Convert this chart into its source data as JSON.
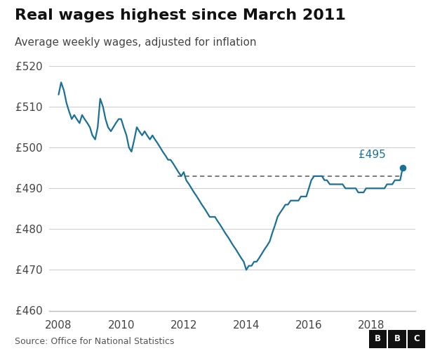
{
  "title": "Real wages highest since March 2011",
  "subtitle": "Average weekly wages, adjusted for inflation",
  "source": "Source: Office for National Statistics",
  "line_color": "#1a7099",
  "dashed_line_y": 493,
  "annotation_value": "£495",
  "annotation_color": "#1a7099",
  "ylim": [
    460,
    522
  ],
  "yticks": [
    460,
    470,
    480,
    490,
    500,
    510,
    520
  ],
  "ylabel_prefix": "£",
  "xticks": [
    2008,
    2010,
    2012,
    2014,
    2016,
    2018
  ],
  "xlim": [
    2007.7,
    2019.4
  ],
  "background_color": "#ffffff",
  "title_fontsize": 16,
  "subtitle_fontsize": 11,
  "axis_fontsize": 11,
  "x_values": [
    2008.0,
    2008.08,
    2008.17,
    2008.25,
    2008.33,
    2008.42,
    2008.5,
    2008.58,
    2008.67,
    2008.75,
    2008.83,
    2008.92,
    2009.0,
    2009.08,
    2009.17,
    2009.25,
    2009.33,
    2009.42,
    2009.5,
    2009.58,
    2009.67,
    2009.75,
    2009.83,
    2009.92,
    2010.0,
    2010.08,
    2010.17,
    2010.25,
    2010.33,
    2010.42,
    2010.5,
    2010.58,
    2010.67,
    2010.75,
    2010.83,
    2010.92,
    2011.0,
    2011.08,
    2011.17,
    2011.25,
    2011.33,
    2011.42,
    2011.5,
    2011.58,
    2011.67,
    2011.75,
    2011.83,
    2011.92,
    2012.0,
    2012.08,
    2012.17,
    2012.25,
    2012.33,
    2012.42,
    2012.5,
    2012.58,
    2012.67,
    2012.75,
    2012.83,
    2012.92,
    2013.0,
    2013.08,
    2013.17,
    2013.25,
    2013.33,
    2013.42,
    2013.5,
    2013.58,
    2013.67,
    2013.75,
    2013.83,
    2013.92,
    2014.0,
    2014.08,
    2014.17,
    2014.25,
    2014.33,
    2014.42,
    2014.5,
    2014.58,
    2014.67,
    2014.75,
    2014.83,
    2014.92,
    2015.0,
    2015.08,
    2015.17,
    2015.25,
    2015.33,
    2015.42,
    2015.5,
    2015.58,
    2015.67,
    2015.75,
    2015.83,
    2015.92,
    2016.0,
    2016.08,
    2016.17,
    2016.25,
    2016.33,
    2016.42,
    2016.5,
    2016.58,
    2016.67,
    2016.75,
    2016.83,
    2016.92,
    2017.0,
    2017.08,
    2017.17,
    2017.25,
    2017.33,
    2017.42,
    2017.5,
    2017.58,
    2017.67,
    2017.75,
    2017.83,
    2017.92,
    2018.0,
    2018.08,
    2018.17,
    2018.25,
    2018.33,
    2018.42,
    2018.5,
    2018.58,
    2018.67,
    2018.75,
    2018.83,
    2018.92,
    2019.0
  ],
  "y_values": [
    513,
    516,
    514,
    511,
    509,
    507,
    508,
    507,
    506,
    508,
    507,
    506,
    505,
    503,
    502,
    505,
    512,
    510,
    507,
    505,
    504,
    505,
    506,
    507,
    507,
    505,
    503,
    500,
    499,
    502,
    505,
    504,
    503,
    504,
    503,
    502,
    503,
    502,
    501,
    500,
    499,
    498,
    497,
    497,
    496,
    495,
    494,
    493,
    494,
    492,
    491,
    490,
    489,
    488,
    487,
    486,
    485,
    484,
    483,
    483,
    483,
    482,
    481,
    480,
    479,
    478,
    477,
    476,
    475,
    474,
    473,
    472,
    470,
    471,
    471,
    472,
    472,
    473,
    474,
    475,
    476,
    477,
    479,
    481,
    483,
    484,
    485,
    486,
    486,
    487,
    487,
    487,
    487,
    488,
    488,
    488,
    490,
    492,
    493,
    493,
    493,
    493,
    492,
    492,
    491,
    491,
    491,
    491,
    491,
    491,
    490,
    490,
    490,
    490,
    490,
    489,
    489,
    489,
    490,
    490,
    490,
    490,
    490,
    490,
    490,
    490,
    491,
    491,
    491,
    492,
    492,
    492,
    495
  ]
}
